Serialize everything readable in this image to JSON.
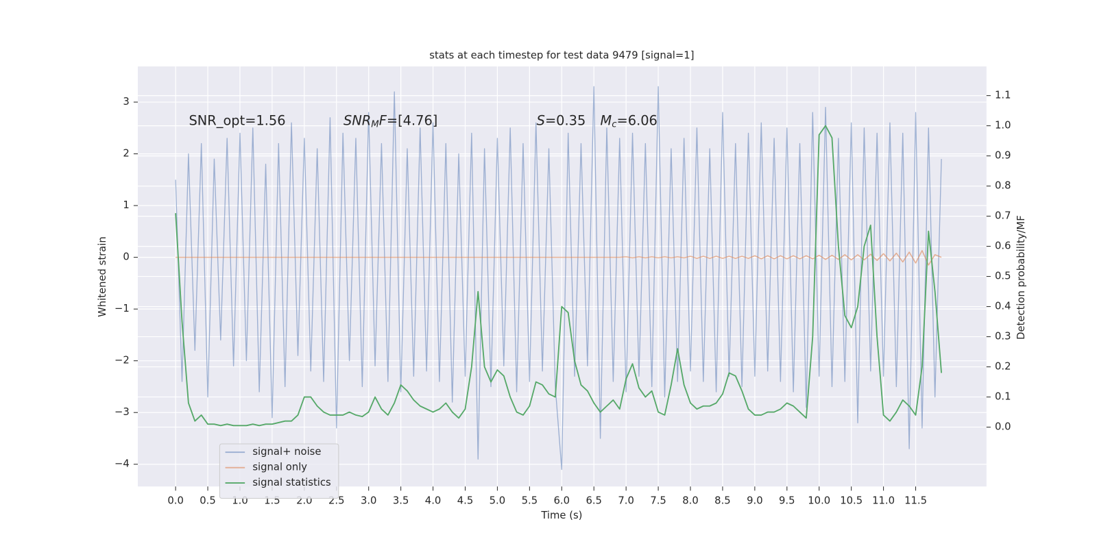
{
  "chart_data": {
    "type": "line",
    "title": "stats at each timestep for test data 9479 [signal=1]",
    "xlabel": "Time (s)",
    "ylabel": "Whitened strain",
    "y2label": "Detection probability/MF",
    "annotations": [
      {
        "parts": [
          {
            "text": "SNR_opt=1.56"
          }
        ]
      },
      {
        "parts": [
          {
            "text": "SNR",
            "style": "italic"
          },
          {
            "text": "M",
            "style": "sub"
          },
          {
            "text": "F",
            "style": "italic"
          },
          {
            "text": "=[4.76]"
          }
        ]
      },
      {
        "parts": [
          {
            "text": "S",
            "style": "italic"
          },
          {
            "text": "=0.35"
          }
        ]
      },
      {
        "parts": [
          {
            "text": "M",
            "style": "italic"
          },
          {
            "text": "c",
            "style": "sub"
          },
          {
            "text": "=6.06"
          }
        ]
      }
    ],
    "x": [
      0,
      0.1,
      0.2,
      0.3,
      0.4,
      0.5,
      0.6,
      0.7,
      0.8,
      0.9,
      1,
      1.1,
      1.2,
      1.3,
      1.4,
      1.5,
      1.6,
      1.7,
      1.8,
      1.9,
      2,
      2.1,
      2.2,
      2.3,
      2.4,
      2.5,
      2.6,
      2.7,
      2.8,
      2.9,
      3,
      3.1,
      3.2,
      3.3,
      3.4,
      3.5,
      3.6,
      3.7,
      3.8,
      3.9,
      4,
      4.1,
      4.2,
      4.3,
      4.4,
      4.5,
      4.6,
      4.7,
      4.8,
      4.9,
      5,
      5.1,
      5.2,
      5.3,
      5.4,
      5.5,
      5.6,
      5.7,
      5.8,
      5.9,
      6,
      6.1,
      6.2,
      6.3,
      6.4,
      6.5,
      6.6,
      6.7,
      6.8,
      6.9,
      7,
      7.1,
      7.2,
      7.3,
      7.4,
      7.5,
      7.6,
      7.7,
      7.8,
      7.9,
      8,
      8.1,
      8.2,
      8.3,
      8.4,
      8.5,
      8.6,
      8.7,
      8.8,
      8.9,
      9,
      9.1,
      9.2,
      9.3,
      9.4,
      9.5,
      9.6,
      9.7,
      9.8,
      9.9,
      10,
      10.1,
      10.2,
      10.3,
      10.4,
      10.5,
      10.6,
      10.7,
      10.8,
      10.9,
      11,
      11.1,
      11.2,
      11.3,
      11.4,
      11.5,
      11.6,
      11.7,
      11.8,
      11.9
    ],
    "series": [
      {
        "name": "signal+ noise",
        "color": "#4c72b0",
        "values": [
          1.5,
          -2.4,
          2.0,
          -1.8,
          2.2,
          -2.7,
          1.9,
          -1.6,
          2.3,
          -2.1,
          2.4,
          -2.0,
          2.5,
          -2.6,
          1.8,
          -3.1,
          2.2,
          -2.5,
          2.6,
          -1.9,
          2.3,
          -2.2,
          2.1,
          -2.4,
          2.7,
          -3.3,
          2.4,
          -2.0,
          2.3,
          -2.5,
          2.8,
          -2.1,
          2.2,
          -2.4,
          3.2,
          -2.6,
          2.1,
          -2.3,
          2.5,
          -2.2,
          2.6,
          -2.4,
          2.2,
          -2.8,
          2.0,
          -2.3,
          2.4,
          -3.9,
          2.1,
          -2.5,
          2.3,
          -2.1,
          2.5,
          -2.6,
          2.2,
          -2.4,
          2.6,
          -2.2,
          2.1,
          -2.5,
          -4.1,
          2.4,
          -2.3,
          2.2,
          -2.1,
          3.3,
          -3.5,
          2.5,
          -2.4,
          2.3,
          -2.6,
          2.4,
          -2.3,
          2.2,
          -2.5,
          3.3,
          -2.7,
          2.1,
          -2.4,
          2.3,
          -2.2,
          2.5,
          -2.4,
          2.1,
          -2.6,
          2.8,
          -2.3,
          2.2,
          -2.5,
          2.4,
          -2.3,
          2.6,
          -2.2,
          2.3,
          -2.4,
          2.5,
          -2.6,
          2.2,
          -2.9,
          2.8,
          -2.3,
          2.9,
          -2.5,
          2.3,
          -2.4,
          2.6,
          -3.2,
          2.5,
          -2.2,
          2.4,
          -2.3,
          2.6,
          -2.5,
          2.4,
          -3.7,
          2.8,
          -3.3,
          2.5,
          -2.7,
          1.9
        ]
      },
      {
        "name": "signal only",
        "color": "#dd8452",
        "values": [
          0,
          0,
          0,
          0,
          0,
          0,
          0,
          0,
          0,
          0,
          0,
          0,
          0,
          0,
          0,
          0,
          0,
          0,
          0,
          0,
          0,
          0,
          0,
          0,
          0,
          0,
          0,
          0,
          0,
          0,
          0,
          0,
          0,
          0,
          0,
          0,
          0,
          0,
          0,
          0,
          0,
          0,
          0,
          0,
          0,
          0,
          0,
          0,
          0,
          0,
          0,
          0,
          0,
          0,
          0,
          0,
          0,
          0,
          0,
          0,
          0,
          0,
          0,
          0,
          0,
          0,
          0,
          0,
          0,
          0,
          0.01,
          -0.01,
          0.01,
          -0.01,
          0.01,
          -0.01,
          0.01,
          -0.01,
          0.01,
          -0.01,
          0.02,
          -0.02,
          0.02,
          -0.02,
          0.02,
          -0.02,
          0.02,
          -0.02,
          0.02,
          -0.02,
          0.03,
          -0.03,
          0.03,
          -0.03,
          0.03,
          -0.03,
          0.03,
          -0.03,
          0.03,
          -0.03,
          0.04,
          -0.04,
          0.04,
          -0.04,
          0.05,
          -0.05,
          0.05,
          -0.05,
          0.06,
          -0.06,
          0.07,
          -0.07,
          0.08,
          -0.09,
          0.1,
          -0.11,
          0.13,
          -0.15,
          0.05,
          0
        ]
      },
      {
        "name": "signal statistics",
        "color": "#55a868",
        "axis": "y2",
        "values": [
          0.71,
          0.35,
          0.08,
          0.02,
          0.04,
          0.01,
          0.01,
          0.005,
          0.01,
          0.005,
          0.005,
          0.005,
          0.01,
          0.005,
          0.01,
          0.01,
          0.015,
          0.02,
          0.02,
          0.04,
          0.1,
          0.1,
          0.07,
          0.05,
          0.04,
          0.04,
          0.04,
          0.05,
          0.04,
          0.035,
          0.05,
          0.1,
          0.06,
          0.04,
          0.08,
          0.14,
          0.12,
          0.09,
          0.07,
          0.06,
          0.05,
          0.06,
          0.08,
          0.05,
          0.03,
          0.06,
          0.2,
          0.45,
          0.2,
          0.15,
          0.19,
          0.17,
          0.1,
          0.05,
          0.04,
          0.07,
          0.15,
          0.14,
          0.11,
          0.1,
          0.4,
          0.38,
          0.22,
          0.14,
          0.12,
          0.08,
          0.05,
          0.07,
          0.09,
          0.06,
          0.16,
          0.21,
          0.13,
          0.1,
          0.12,
          0.05,
          0.04,
          0.14,
          0.26,
          0.14,
          0.08,
          0.06,
          0.07,
          0.07,
          0.08,
          0.11,
          0.18,
          0.17,
          0.12,
          0.06,
          0.04,
          0.04,
          0.05,
          0.05,
          0.06,
          0.08,
          0.07,
          0.05,
          0.03,
          0.3,
          0.97,
          1.0,
          0.96,
          0.6,
          0.37,
          0.33,
          0.4,
          0.6,
          0.67,
          0.3,
          0.04,
          0.02,
          0.05,
          0.09,
          0.07,
          0.04,
          0.2,
          0.65,
          0.45,
          0.18
        ]
      }
    ],
    "xlim": [
      -0.587,
      12.6
    ],
    "xticks": [
      {
        "value": 0,
        "label": "0.0"
      },
      0.5,
      {
        "value": 1,
        "label": "1.0"
      },
      1.5,
      {
        "value": 2,
        "label": "2.0"
      },
      2.5,
      {
        "value": 3,
        "label": "3.0"
      },
      3.5,
      {
        "value": 4,
        "label": "4.0"
      },
      4.5,
      {
        "value": 5,
        "label": "5.0"
      },
      5.5,
      {
        "value": 6,
        "label": "6.0"
      },
      6.5,
      {
        "value": 7,
        "label": "7.0"
      },
      7.5,
      {
        "value": 8,
        "label": "8.0"
      },
      8.5,
      {
        "value": 9,
        "label": "9.0"
      },
      9.5,
      {
        "value": 10,
        "label": "10.0"
      },
      10.5,
      {
        "value": 11,
        "label": "11.0"
      },
      11.5
    ],
    "ylim": [
      -4.43,
      3.69
    ],
    "yticks": [
      {
        "value": -4,
        "label": "−4"
      },
      {
        "value": -3,
        "label": "−3"
      },
      {
        "value": -2,
        "label": "−2"
      },
      {
        "value": -1,
        "label": "−1"
      },
      0,
      1,
      2,
      3
    ],
    "y2lim": [
      -0.197,
      1.197
    ],
    "y2ticks": [
      {
        "value": 0,
        "label": "0.0"
      },
      0.1,
      0.2,
      0.3,
      0.4,
      0.5,
      0.6,
      0.7,
      0.8,
      0.9,
      {
        "value": 1,
        "label": "1.0"
      },
      1.1
    ],
    "grid": true,
    "legend": "lower left"
  }
}
